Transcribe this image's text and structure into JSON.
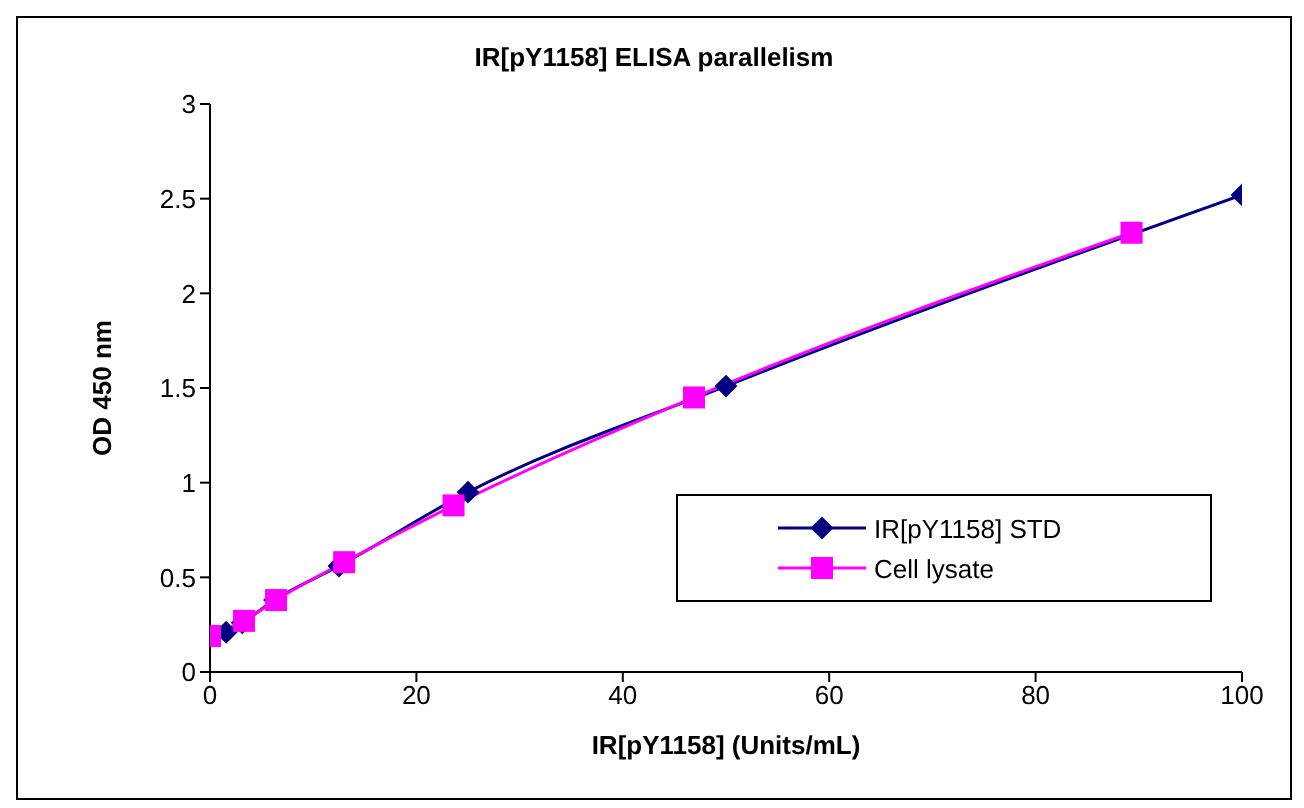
{
  "chart_data": {
    "type": "line",
    "title": "IR[pY1158] ELISA parallelism",
    "xlabel": "IR[pY1158]  (Units/mL)",
    "ylabel": "OD 450 nm",
    "xlim": [
      0,
      100
    ],
    "xticks": [
      0,
      20,
      40,
      60,
      80,
      100
    ],
    "ylim": [
      0,
      3
    ],
    "yticks": [
      0,
      0.5,
      1,
      1.5,
      2,
      2.5,
      3
    ],
    "grid": false,
    "legend": "bottom right",
    "series": [
      {
        "name": "IR[pY1158] STD",
        "color": "#000080",
        "marker": "diamond",
        "x": [
          1.5625,
          3.125,
          6.25,
          12.5,
          25,
          50,
          100
        ],
        "values": [
          0.21,
          0.26,
          0.38,
          0.56,
          0.95,
          1.51,
          2.52
        ]
      },
      {
        "name": "Cell lysate",
        "color": "#ff00ff",
        "marker": "square",
        "x": [
          0,
          3.3,
          6.4,
          13,
          23.6,
          46.9,
          89.3
        ],
        "values": [
          0.19,
          0.27,
          0.38,
          0.58,
          0.88,
          1.45,
          2.32
        ]
      }
    ]
  }
}
